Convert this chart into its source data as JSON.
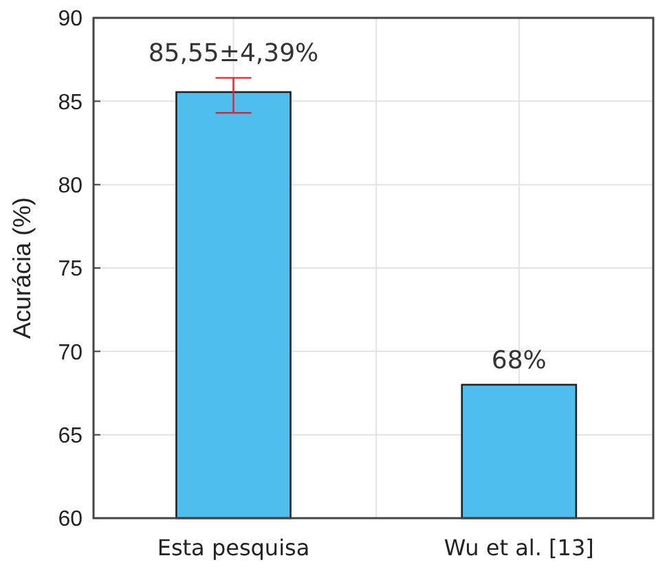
{
  "chart_data": {
    "type": "bar",
    "ylabel": "Acurácia (%)",
    "categories": [
      "Esta pesquisa",
      "Wu et al. [13]"
    ],
    "values": [
      85.55,
      68
    ],
    "color": "#4dbeee",
    "errors": [
      [
        84.3,
        86.4
      ],
      null
    ],
    "value_labels": [
      "85,55±4,39%",
      "68%"
    ],
    "ylim": [
      60,
      90
    ],
    "yticks": [
      60,
      65,
      70,
      75,
      80,
      85,
      90
    ],
    "grid": true
  }
}
